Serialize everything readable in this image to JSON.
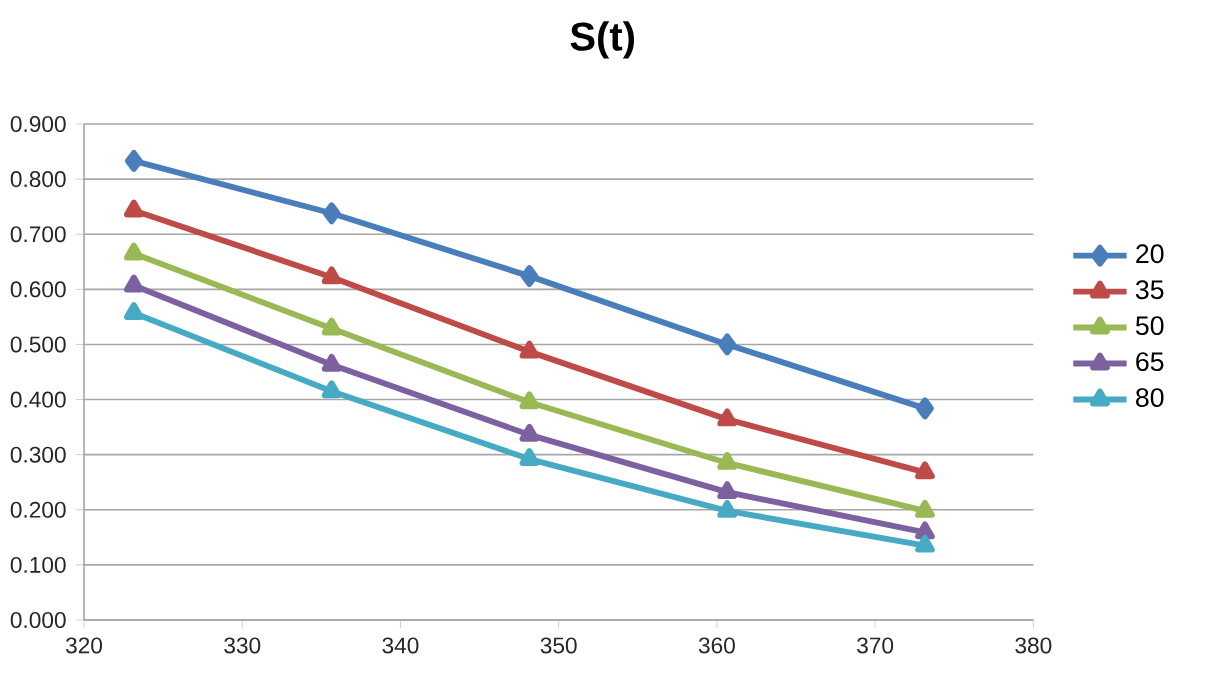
{
  "chart_data": {
    "type": "line",
    "title": "S(t)",
    "x": [
      323.15,
      335.65,
      348.15,
      360.65,
      373.15
    ],
    "series": [
      {
        "name": "20",
        "color": "#4a7ebb",
        "marker": "diamond",
        "values": [
          0.833,
          0.738,
          0.624,
          0.5,
          0.384
        ]
      },
      {
        "name": "35",
        "color": "#be4b48",
        "marker": "triangle",
        "values": [
          0.743,
          0.622,
          0.487,
          0.364,
          0.268
        ]
      },
      {
        "name": "50",
        "color": "#98b954",
        "marker": "triangle",
        "values": [
          0.665,
          0.529,
          0.395,
          0.285,
          0.198
        ]
      },
      {
        "name": "65",
        "color": "#7d60a0",
        "marker": "triangle",
        "values": [
          0.607,
          0.463,
          0.336,
          0.232,
          0.159
        ]
      },
      {
        "name": "80",
        "color": "#46aac5",
        "marker": "triangle",
        "values": [
          0.557,
          0.415,
          0.292,
          0.198,
          0.135
        ]
      }
    ],
    "xlim": [
      320,
      380
    ],
    "xticks": [
      320,
      330,
      340,
      350,
      360,
      370,
      380
    ],
    "ylim": [
      0,
      0.9
    ],
    "yticks": [
      {
        "value": 0,
        "label": "0.000"
      },
      {
        "value": 0.1,
        "label": "0.100"
      },
      {
        "value": 0.2,
        "label": "0.200"
      },
      {
        "value": 0.3,
        "label": "0.300"
      },
      {
        "value": 0.4,
        "label": "0.400"
      },
      {
        "value": 0.5,
        "label": "0.500"
      },
      {
        "value": 0.6,
        "label": "0.600"
      },
      {
        "value": 0.7,
        "label": "0.700"
      },
      {
        "value": 0.8,
        "label": "0.800"
      },
      {
        "value": 0.9,
        "label": "0.900"
      }
    ],
    "grid": "y",
    "legend": "right",
    "line_style": "solid"
  }
}
